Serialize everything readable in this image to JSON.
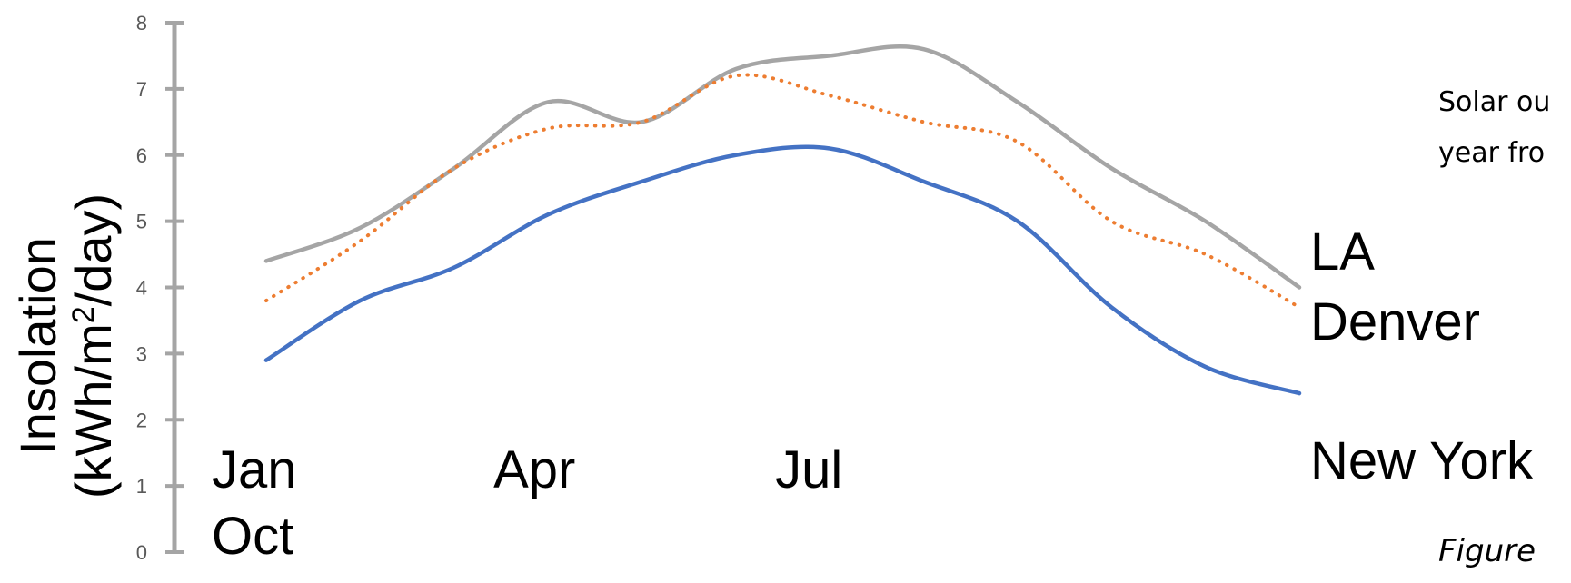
{
  "chart_data": {
    "type": "line",
    "title": "",
    "xlabel": "",
    "ylabel_line1": "Insolation",
    "ylabel_line2_prefix": "(kWh/m",
    "ylabel_line2_sup": "2",
    "ylabel_line2_suffix": "/day)",
    "ylim": [
      0,
      8
    ],
    "yticks": [
      "0",
      "1",
      "2",
      "3",
      "4",
      "5",
      "6",
      "7",
      "8"
    ],
    "x": [
      1,
      2,
      3,
      4,
      5,
      6,
      7,
      8,
      9,
      10,
      11,
      12
    ],
    "x_labels": [
      {
        "text": "Jan",
        "x": 1
      },
      {
        "text": "Apr",
        "x": 4
      },
      {
        "text": "Jul",
        "x": 7
      },
      {
        "text": "Oct",
        "x": 1
      }
    ],
    "grid": false,
    "series": [
      {
        "name": "LA",
        "color": "#A5A5A5",
        "style": "solid",
        "values": [
          4.4,
          4.9,
          5.8,
          6.8,
          6.5,
          7.3,
          7.5,
          7.6,
          6.8,
          5.8,
          5.0,
          4.0
        ]
      },
      {
        "name": "Denver",
        "color": "#ED7D31",
        "style": "dotted",
        "values": [
          3.8,
          4.7,
          5.8,
          6.4,
          6.5,
          7.2,
          6.9,
          6.5,
          6.2,
          5.0,
          4.5,
          3.7
        ]
      },
      {
        "name": "New York",
        "color": "#4472C4",
        "style": "solid",
        "values": [
          2.9,
          3.8,
          4.3,
          5.1,
          5.6,
          6.0,
          6.1,
          5.6,
          5.0,
          3.7,
          2.8,
          2.4
        ]
      }
    ],
    "annotations": {
      "note_line1": "Solar ou",
      "note_line2": "year fro",
      "caption": "Figure "
    }
  }
}
